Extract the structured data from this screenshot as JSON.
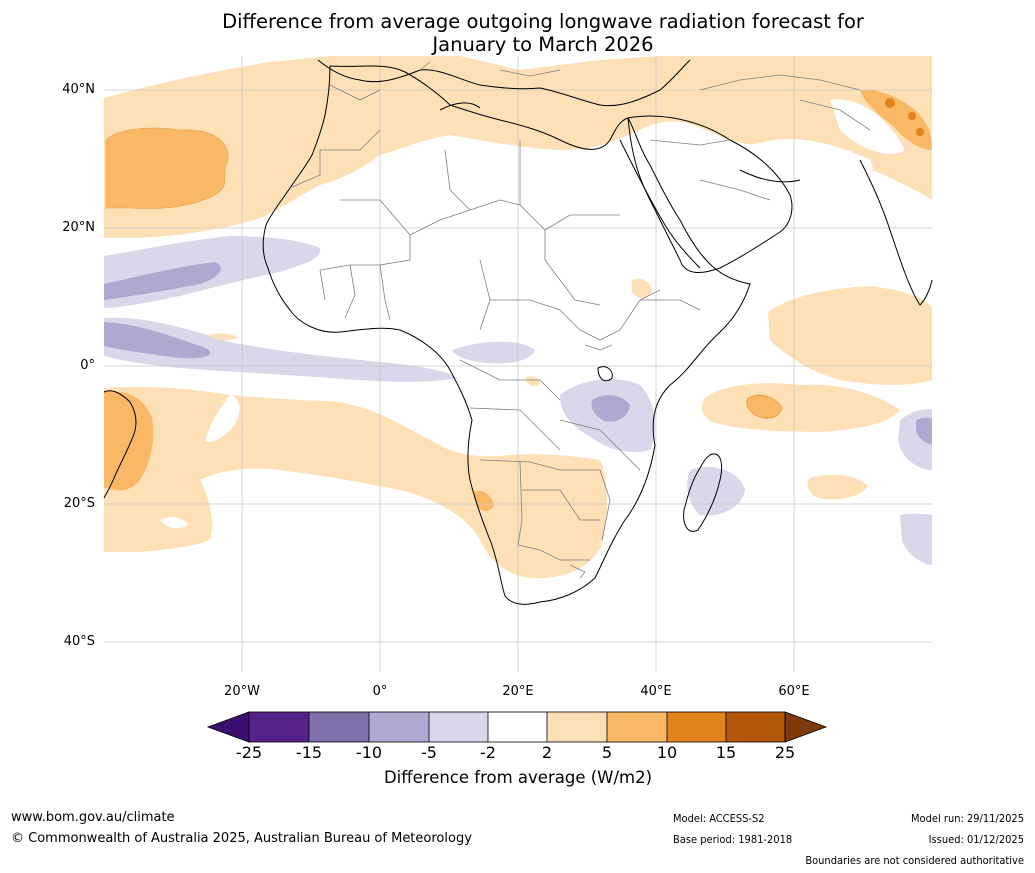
{
  "title": {
    "line1": "Difference from average outgoing longwave radiation forecast for",
    "line2": "January to March 2026"
  },
  "axes": {
    "lat_labels": [
      "40°N",
      "20°N",
      "0°",
      "20°S",
      "40°S"
    ],
    "lon_labels": [
      "20°W",
      "0°",
      "20°E",
      "40°E",
      "60°E"
    ]
  },
  "colorbar": {
    "ticks": [
      "-25",
      "-15",
      "-10",
      "-5",
      "-2",
      "2",
      "5",
      "10",
      "15",
      "25"
    ],
    "colors": [
      "#3b0f6f",
      "#55228a",
      "#7f70ab",
      "#b0a8d1",
      "#d8d8ea",
      "#ffffff",
      "#fde0b5",
      "#fab765",
      "#e1821c",
      "#b3570b",
      "#7e3a08"
    ],
    "label": "Difference from average (W/m2)"
  },
  "footer": {
    "website": "www.bom.gov.au/climate",
    "copyright": "© Commonwealth of Australia 2025, Australian Bureau of Meteorology",
    "model": "Model: ACCESS-S2",
    "base_period": "Base period: 1981-2018",
    "model_run": "Model run: 29/11/2025",
    "issued": "Issued: 01/12/2025",
    "disclaimer": "Boundaries are not considered authoritative"
  }
}
